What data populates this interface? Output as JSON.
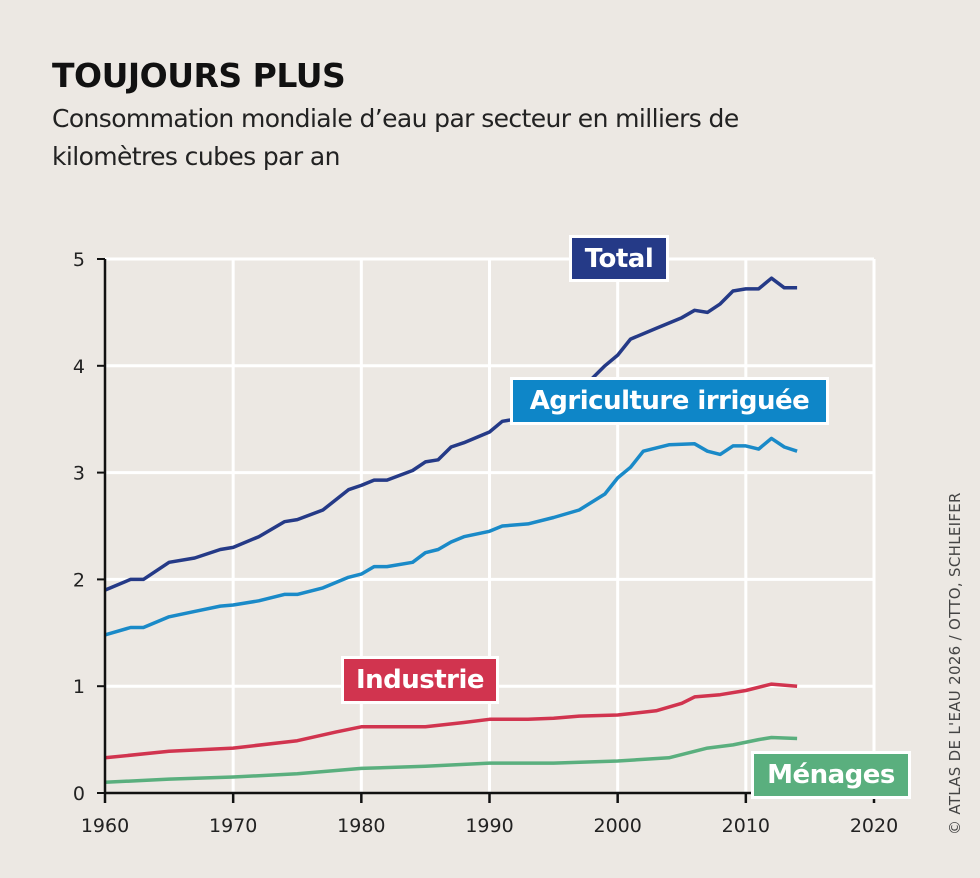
{
  "title": "TOUJOURS PLUS",
  "subtitle": "Consommation mondiale d’eau par secteur en milliers de kilomètres cubes par an",
  "credit": "© ATLAS DE L'EAU 2026 / OTTO, SCHLEIFER",
  "chart_data": {
    "type": "line",
    "title": "TOUJOURS PLUS",
    "xlabel": "",
    "ylabel": "",
    "xlim": [
      1960,
      2020
    ],
    "ylim": [
      0,
      5
    ],
    "grid": true,
    "x_ticks": [
      "1960",
      "1970",
      "1980",
      "1990",
      "2000",
      "2010",
      "2020"
    ],
    "y_ticks": [
      "0",
      "1",
      "2",
      "3",
      "4",
      "5"
    ],
    "series": [
      {
        "name": "Total",
        "color": "#253a87",
        "x": [
          1960,
          1962,
          1963,
          1965,
          1967,
          1969,
          1970,
          1972,
          1974,
          1975,
          1977,
          1979,
          1980,
          1981,
          1982,
          1984,
          1985,
          1986,
          1987,
          1988,
          1990,
          1991,
          1992,
          1993,
          1995,
          1997,
          1998,
          1999,
          2000,
          2001,
          2003,
          2005,
          2006,
          2007,
          2008,
          2009,
          2010,
          2011,
          2012,
          2013,
          2014
        ],
        "y": [
          1.9,
          2.0,
          2.0,
          2.16,
          2.2,
          2.28,
          2.3,
          2.4,
          2.54,
          2.56,
          2.65,
          2.84,
          2.88,
          2.93,
          2.93,
          3.02,
          3.1,
          3.12,
          3.24,
          3.28,
          3.38,
          3.48,
          3.5,
          3.55,
          3.65,
          3.8,
          3.88,
          4.0,
          4.1,
          4.25,
          4.35,
          4.45,
          4.52,
          4.5,
          4.58,
          4.7,
          4.72,
          4.72,
          4.82,
          4.73,
          4.73
        ]
      },
      {
        "name": "Agriculture irriguée",
        "color": "#1a8ac8",
        "x": [
          1960,
          1962,
          1963,
          1965,
          1967,
          1969,
          1970,
          1972,
          1974,
          1975,
          1977,
          1979,
          1980,
          1981,
          1982,
          1984,
          1985,
          1986,
          1987,
          1988,
          1990,
          1991,
          1993,
          1995,
          1997,
          1999,
          2000,
          2001,
          2002,
          2004,
          2006,
          2007,
          2008,
          2009,
          2010,
          2011,
          2012,
          2013,
          2014
        ],
        "y": [
          1.48,
          1.55,
          1.55,
          1.65,
          1.7,
          1.75,
          1.76,
          1.8,
          1.86,
          1.86,
          1.92,
          2.02,
          2.05,
          2.12,
          2.12,
          2.16,
          2.25,
          2.28,
          2.35,
          2.4,
          2.45,
          2.5,
          2.52,
          2.58,
          2.65,
          2.8,
          2.95,
          3.05,
          3.2,
          3.26,
          3.27,
          3.2,
          3.17,
          3.25,
          3.25,
          3.22,
          3.32,
          3.24,
          3.2
        ]
      },
      {
        "name": "Industrie",
        "color": "#d1344f",
        "x": [
          1960,
          1965,
          1970,
          1975,
          1978,
          1980,
          1985,
          1988,
          1990,
          1993,
          1995,
          1997,
          2000,
          2003,
          2005,
          2006,
          2008,
          2010,
          2012,
          2014
        ],
        "y": [
          0.33,
          0.39,
          0.42,
          0.49,
          0.57,
          0.62,
          0.62,
          0.66,
          0.69,
          0.69,
          0.7,
          0.72,
          0.73,
          0.77,
          0.84,
          0.9,
          0.92,
          0.96,
          1.02,
          1.0
        ]
      },
      {
        "name": "Ménages",
        "color": "#5aaf7e",
        "x": [
          1960,
          1965,
          1970,
          1975,
          1980,
          1985,
          1990,
          1995,
          2000,
          2004,
          2007,
          2009,
          2011,
          2012,
          2014
        ],
        "y": [
          0.1,
          0.13,
          0.15,
          0.18,
          0.23,
          0.25,
          0.28,
          0.28,
          0.3,
          0.33,
          0.42,
          0.45,
          0.5,
          0.52,
          0.51
        ]
      }
    ]
  }
}
